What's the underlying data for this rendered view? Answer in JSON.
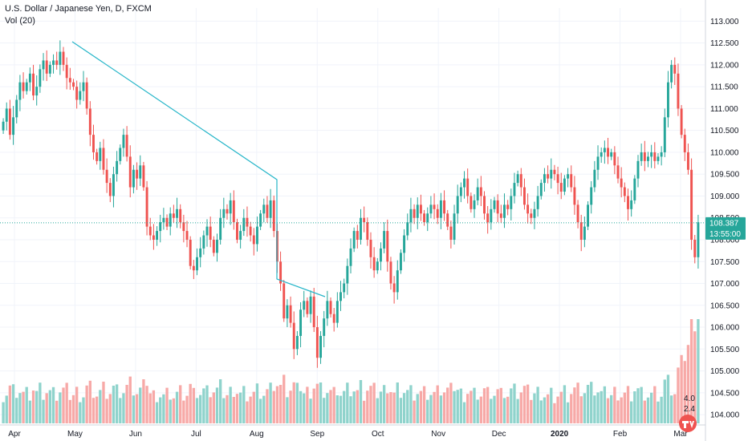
{
  "header": {
    "symbol_line": "U.S. Dollar / Japanese Yen, D, FXCM",
    "volume_line": "Vol (20)"
  },
  "colors": {
    "up": "#26a69a",
    "down": "#ef5350",
    "vol_up": "#8fd3cc",
    "vol_down": "#f7a9a7",
    "trendline": "#27b6c9",
    "price_line": "#26a69a",
    "grid": "#f0f3fa",
    "axis_text": "#131722"
  },
  "price_tag": {
    "price": "108.387",
    "countdown": "13:55:00"
  },
  "volume_tags": [
    "4.0",
    "2.4"
  ],
  "chart_data": {
    "type": "candlestick",
    "title": "U.S. Dollar / Japanese Yen, D, FXCM",
    "y_ticks": [
      "113.000",
      "112.500",
      "112.000",
      "111.500",
      "111.000",
      "110.500",
      "110.000",
      "109.500",
      "109.000",
      "108.500",
      "108.000",
      "107.500",
      "107.000",
      "106.500",
      "106.000",
      "105.500",
      "105.000",
      "104.500",
      "104.000"
    ],
    "y_range": [
      103.8,
      113.3
    ],
    "x_ticks": [
      "Apr",
      "May",
      "Jun",
      "Jul",
      "Aug",
      "Sep",
      "Oct",
      "Nov",
      "Dec",
      "2020",
      "Feb",
      "Mar"
    ],
    "current_price": 108.387,
    "series_closes": [
      110.7,
      111.0,
      110.4,
      110.8,
      111.2,
      111.6,
      111.4,
      111.6,
      111.8,
      111.3,
      111.5,
      111.9,
      112.1,
      111.8,
      112.0,
      112.1,
      112.0,
      112.3,
      112.0,
      111.7,
      111.6,
      111.5,
      111.2,
      111.4,
      111.6,
      111.0,
      110.4,
      110.0,
      109.8,
      110.1,
      109.6,
      109.3,
      109.0,
      109.5,
      109.8,
      110.1,
      110.4,
      109.9,
      109.2,
      109.6,
      109.4,
      109.7,
      109.2,
      108.3,
      108.1,
      108.0,
      108.2,
      108.4,
      108.5,
      108.3,
      108.6,
      108.5,
      108.7,
      108.4,
      108.2,
      108.0,
      107.4,
      107.3,
      107.6,
      107.8,
      108.1,
      108.3,
      108.0,
      107.7,
      108.0,
      108.5,
      108.7,
      108.6,
      108.9,
      108.4,
      108.0,
      108.2,
      108.5,
      108.3,
      108.1,
      107.9,
      108.3,
      108.6,
      108.8,
      108.5,
      108.9,
      108.2,
      107.5,
      107.0,
      106.2,
      106.5,
      106.1,
      105.5,
      105.8,
      106.4,
      106.6,
      106.3,
      106.7,
      106.0,
      105.3,
      105.8,
      106.2,
      106.6,
      106.3,
      106.1,
      106.6,
      106.8,
      107.0,
      107.4,
      107.8,
      108.2,
      108.0,
      108.5,
      108.4,
      108.0,
      107.6,
      107.3,
      107.5,
      107.8,
      108.2,
      107.5,
      107.0,
      106.8,
      107.3,
      107.7,
      108.1,
      108.4,
      108.7,
      108.5,
      108.8,
      108.6,
      108.4,
      108.6,
      108.8,
      108.7,
      108.5,
      108.9,
      108.6,
      108.3,
      108.0,
      108.6,
      109.0,
      109.2,
      109.4,
      109.0,
      108.7,
      108.9,
      109.2,
      109.0,
      108.6,
      108.4,
      108.7,
      108.9,
      108.6,
      108.5,
      108.8,
      108.7,
      109.0,
      109.3,
      109.5,
      109.2,
      108.8,
      108.6,
      108.5,
      108.7,
      109.0,
      109.3,
      109.5,
      109.4,
      109.6,
      109.5,
      109.3,
      109.1,
      109.4,
      109.5,
      109.2,
      108.8,
      108.4,
      108.0,
      108.3,
      108.8,
      109.2,
      109.6,
      109.9,
      110.0,
      110.1,
      109.9,
      110.0,
      109.7,
      109.4,
      109.2,
      109.0,
      108.7,
      108.9,
      109.4,
      109.8,
      110.0,
      109.8,
      109.9,
      110.0,
      109.8,
      109.9,
      110.0,
      110.8,
      111.6,
      112.0,
      111.8,
      111.0,
      110.4,
      110.0,
      109.6,
      108.0,
      107.6,
      108.4
    ]
  }
}
